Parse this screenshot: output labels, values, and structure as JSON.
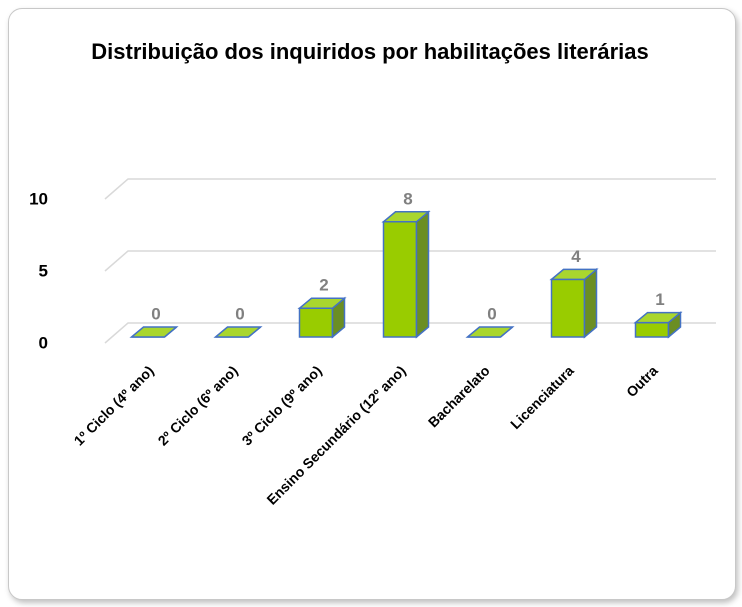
{
  "chart_data": {
    "type": "bar3d",
    "title": "Distribuição dos inquiridos por habilitações literárias",
    "categories": [
      "1º Ciclo (4º ano)",
      "2º Ciclo (6º ano)",
      "3º Ciclo (9º ano)",
      "Ensino Secundário (12º ano)",
      "Bacharelato",
      "Licenciatura",
      "Outra"
    ],
    "values": [
      0,
      0,
      2,
      8,
      0,
      4,
      1
    ],
    "color": "#99cc00",
    "ylim": [
      0,
      10
    ],
    "yticks": [
      0,
      5,
      10
    ],
    "grid": true
  }
}
